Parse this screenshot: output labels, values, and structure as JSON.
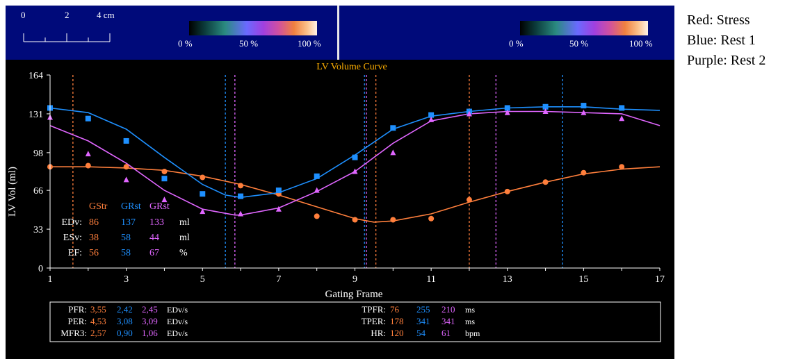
{
  "side_legend": [
    "Red: Stress",
    "Blue: Rest 1",
    "Purple: Rest 2"
  ],
  "scale_bar": {
    "labels": [
      "0",
      "2",
      "4 cm"
    ]
  },
  "colorbars": [
    {
      "labels": [
        "0 %",
        "50 %",
        "100 %"
      ]
    },
    {
      "labels": [
        "0 %",
        "50 %",
        "100 %"
      ]
    }
  ],
  "colors": {
    "stress": "#ff7f3c",
    "rest1": "#1e90ff",
    "rest2": "#e066ff",
    "title": "#ffb000"
  },
  "chart_data": {
    "type": "scatter",
    "title": "LV Volume Curve",
    "xlabel": "Gating Frame",
    "ylabel": "LV Vol (ml)",
    "xlim": [
      1,
      17
    ],
    "ylim": [
      0,
      164
    ],
    "xticks": [
      1,
      3,
      5,
      7,
      9,
      11,
      13,
      15,
      17
    ],
    "yticks": [
      0,
      33,
      66,
      98,
      131,
      164
    ],
    "series": [
      {
        "name": "GStr",
        "color": "#ff7f3c",
        "marker": "circle",
        "x": [
          1,
          2,
          3,
          4,
          5,
          6,
          7,
          8,
          9,
          10,
          11,
          12,
          13,
          14,
          15,
          16
        ],
        "y": [
          86,
          87,
          86,
          82,
          77,
          70,
          63,
          44,
          41,
          41,
          42,
          58,
          65,
          73,
          81,
          86
        ],
        "fit": [
          [
            1,
            86
          ],
          [
            2,
            86
          ],
          [
            3,
            85
          ],
          [
            4,
            83
          ],
          [
            5,
            78
          ],
          [
            6,
            71
          ],
          [
            7,
            62
          ],
          [
            8,
            52
          ],
          [
            9,
            42
          ],
          [
            9.5,
            39
          ],
          [
            10,
            40
          ],
          [
            11,
            46
          ],
          [
            12,
            56
          ],
          [
            13,
            65
          ],
          [
            14,
            73
          ],
          [
            15,
            80
          ],
          [
            16,
            84
          ],
          [
            17,
            86
          ]
        ],
        "markers_x": [
          1.6,
          9.55,
          12.0
        ]
      },
      {
        "name": "GRst",
        "color": "#1e90ff",
        "marker": "square",
        "x": [
          1,
          2,
          3,
          4,
          5,
          6,
          7,
          8,
          9,
          10,
          11,
          12,
          13,
          14,
          15,
          16
        ],
        "y": [
          136,
          127,
          108,
          76,
          63,
          61,
          66,
          78,
          94,
          119,
          130,
          133,
          136,
          137,
          138,
          136
        ],
        "fit": [
          [
            1,
            136
          ],
          [
            2,
            132
          ],
          [
            3,
            118
          ],
          [
            4,
            94
          ],
          [
            5,
            71
          ],
          [
            5.6,
            62
          ],
          [
            6,
            60
          ],
          [
            7,
            64
          ],
          [
            8,
            76
          ],
          [
            9,
            96
          ],
          [
            10,
            118
          ],
          [
            11,
            129
          ],
          [
            12,
            133
          ],
          [
            13,
            136
          ],
          [
            14,
            137
          ],
          [
            15,
            137
          ],
          [
            16,
            135
          ],
          [
            17,
            134
          ]
        ],
        "markers_x": [
          5.6,
          9.25,
          14.45
        ]
      },
      {
        "name": "GRst",
        "color": "#e066ff",
        "marker": "triangle",
        "x": [
          1,
          2,
          3,
          4,
          5,
          6,
          7,
          8,
          9,
          10,
          11,
          12,
          13,
          14,
          15,
          16
        ],
        "y": [
          128,
          97,
          75,
          58,
          48,
          46,
          50,
          66,
          82,
          98,
          126,
          131,
          132,
          133,
          132,
          127
        ],
        "fit": [
          [
            1,
            121
          ],
          [
            2,
            108
          ],
          [
            3,
            89
          ],
          [
            4,
            66
          ],
          [
            5,
            50
          ],
          [
            5.85,
            45
          ],
          [
            6,
            45
          ],
          [
            7,
            51
          ],
          [
            8,
            65
          ],
          [
            9,
            82
          ],
          [
            10,
            106
          ],
          [
            11,
            125
          ],
          [
            12,
            131
          ],
          [
            13,
            133
          ],
          [
            14,
            133
          ],
          [
            15,
            132
          ],
          [
            16,
            131
          ],
          [
            17,
            121
          ]
        ],
        "markers_x": [
          5.85,
          9.3,
          12.7
        ]
      }
    ],
    "stats_table": {
      "headers": [
        "GStr",
        "GRst",
        "GRst"
      ],
      "rows": [
        {
          "label": "EDv:",
          "values": [
            "86",
            "137",
            "133"
          ],
          "unit": "ml"
        },
        {
          "label": "ESv:",
          "values": [
            "38",
            "58",
            "44"
          ],
          "unit": "ml"
        },
        {
          "label": "EF:",
          "values": [
            "56",
            "58",
            "67"
          ],
          "unit": "%"
        }
      ]
    },
    "rates_left": [
      {
        "label": "PFR:",
        "values": [
          "3,55",
          "2,42",
          "2,45"
        ],
        "unit": "EDv/s"
      },
      {
        "label": "PER:",
        "values": [
          "4,53",
          "3,08",
          "3,09"
        ],
        "unit": "EDv/s"
      },
      {
        "label": "MFR3:",
        "values": [
          "2,57",
          "0,90",
          "1,06"
        ],
        "unit": "EDv/s"
      }
    ],
    "rates_right": [
      {
        "label": "TPFR:",
        "values": [
          "76",
          "255",
          "210"
        ],
        "unit": "ms"
      },
      {
        "label": "TPER:",
        "values": [
          "178",
          "341",
          "341"
        ],
        "unit": "ms"
      },
      {
        "label": "HR:",
        "values": [
          "120",
          "54",
          "61"
        ],
        "unit": "bpm"
      }
    ]
  }
}
